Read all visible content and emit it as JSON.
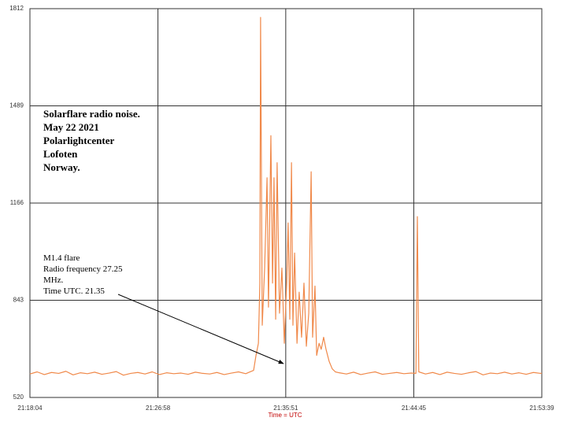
{
  "chart_data": {
    "type": "line",
    "xlabel": "Time = UTC",
    "color": "#f0894a",
    "grid": true,
    "xlim": [
      "21:18:04",
      "21:53:39"
    ],
    "xticks": [
      "21:18:04",
      "21:26:58",
      "21:35:51",
      "21:44:45",
      "21:53:39"
    ],
    "ylim": [
      520,
      1812
    ],
    "yticks": [
      520,
      843,
      1166,
      1489,
      1812
    ],
    "annotations": [
      "Solarflare radio noise.",
      "May 22 2021",
      "Polarlightcenter",
      "Lofoten",
      "Norway.",
      "M1.4 flare",
      "Radio frequency 27.25",
      "MHz.",
      "Time UTC. 21.35"
    ],
    "x": [
      "21:18:04",
      "21:18:34",
      "21:19:04",
      "21:19:34",
      "21:20:04",
      "21:20:34",
      "21:21:04",
      "21:21:34",
      "21:22:04",
      "21:22:34",
      "21:23:04",
      "21:23:34",
      "21:24:04",
      "21:24:34",
      "21:25:04",
      "21:25:34",
      "21:26:04",
      "21:26:34",
      "21:27:04",
      "21:27:34",
      "21:28:04",
      "21:28:34",
      "21:29:04",
      "21:29:34",
      "21:30:04",
      "21:30:34",
      "21:31:04",
      "21:31:34",
      "21:32:04",
      "21:32:34",
      "21:33:04",
      "21:33:37",
      "21:33:47",
      "21:33:57",
      "21:34:03",
      "21:34:06",
      "21:34:13",
      "21:34:23",
      "21:34:33",
      "21:34:39",
      "21:34:49",
      "21:34:56",
      "21:35:02",
      "21:35:09",
      "21:35:15",
      "21:35:25",
      "21:35:35",
      "21:35:45",
      "21:35:55",
      "21:36:01",
      "21:36:08",
      "21:36:15",
      "21:36:21",
      "21:36:28",
      "21:36:38",
      "21:36:47",
      "21:36:57",
      "21:37:07",
      "21:37:17",
      "21:37:27",
      "21:37:37",
      "21:37:43",
      "21:37:53",
      "21:38:00",
      "21:38:10",
      "21:38:19",
      "21:38:29",
      "21:38:39",
      "21:38:52",
      "21:39:05",
      "21:39:18",
      "21:39:34",
      "21:40:04",
      "21:40:34",
      "21:41:04",
      "21:41:34",
      "21:42:04",
      "21:42:34",
      "21:43:04",
      "21:43:34",
      "21:44:04",
      "21:44:34",
      "21:44:54",
      "21:45:00",
      "21:45:06",
      "21:45:34",
      "21:46:04",
      "21:46:34",
      "21:47:04",
      "21:47:34",
      "21:48:04",
      "21:48:34",
      "21:49:04",
      "21:49:34",
      "21:50:04",
      "21:50:34",
      "21:51:04",
      "21:51:34",
      "21:52:04",
      "21:52:34",
      "21:53:04",
      "21:53:34",
      "21:53:39"
    ],
    "values": [
      598,
      605,
      596,
      603,
      600,
      607,
      595,
      602,
      599,
      604,
      597,
      601,
      606,
      594,
      600,
      603,
      598,
      605,
      596,
      602,
      599,
      601,
      597,
      604,
      600,
      598,
      603,
      596,
      601,
      605,
      599,
      610,
      660,
      700,
      900,
      1783,
      760,
      950,
      1250,
      820,
      1390,
      900,
      1250,
      780,
      1300,
      800,
      950,
      700,
      900,
      1100,
      780,
      1300,
      760,
      1000,
      700,
      870,
      720,
      900,
      690,
      800,
      1270,
      720,
      890,
      660,
      700,
      680,
      720,
      680,
      640,
      615,
      605,
      602,
      598,
      604,
      596,
      601,
      605,
      597,
      600,
      603,
      599,
      601,
      600,
      1121,
      605,
      598,
      603,
      596,
      604,
      600,
      597,
      602,
      606,
      595,
      601,
      599,
      604,
      598,
      602,
      597,
      603,
      600,
      601
    ]
  }
}
